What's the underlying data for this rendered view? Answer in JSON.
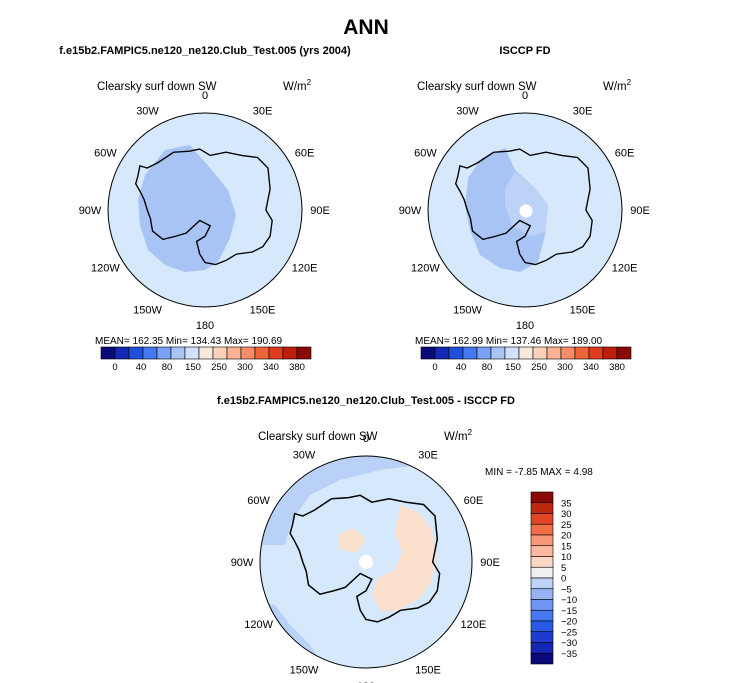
{
  "figure_title": "ANN",
  "bottom_title": "f.e15b2.FAMPIC5.ne120_ne120.Club_Test.005 - ISCCP FD",
  "colors": {
    "ocean_base": "#d6e8fb",
    "shade_low": "#a8c4f4",
    "shade_mid": "#bcd3f7",
    "diff_neg": "#b9d1f6",
    "diff_pos": "#fbe1cd",
    "coast": "#000000"
  },
  "panels": [
    {
      "id": "model",
      "title": "f.e15b2.FAMPIC5.ne120_ne120.Club_Test.005 (yrs 2004)",
      "variable": "Clearsky surf down SW",
      "units": "W/m",
      "units_sup": "2",
      "stats": "MEAN= 162.35   Min= 134.43   Max= 190.69"
    },
    {
      "id": "obs",
      "title": "ISCCP FD",
      "variable": "Clearsky surf down SW",
      "units": "W/m",
      "units_sup": "2",
      "stats": "MEAN= 162.99   Min= 137.46   Max= 189.00"
    },
    {
      "id": "diff",
      "title": "",
      "variable": "Clearsky surf down SW",
      "units": "W/m",
      "units_sup": "2",
      "stats": "MIN =   -7.85  MAX =    4.98"
    }
  ],
  "lon_labels": [
    "0",
    "30E",
    "60E",
    "90E",
    "120E",
    "150E",
    "180",
    "150W",
    "120W",
    "90W",
    "60W",
    "30W"
  ],
  "colorbar_main": {
    "colors": [
      "#0a0a78",
      "#1428b4",
      "#1e50dc",
      "#4678f0",
      "#7aa0f5",
      "#aac4f8",
      "#d2e1fb",
      "#f5eae0",
      "#fbd2b9",
      "#fab494",
      "#f78c6a",
      "#f0643c",
      "#e03c1e",
      "#be1e0a",
      "#8c0a05"
    ],
    "tick_labels": [
      "0",
      "40",
      "80",
      "150",
      "250",
      "300",
      "340",
      "380"
    ]
  },
  "colorbar_diff": {
    "colors": [
      "#0a0a78",
      "#1428b4",
      "#1e3cd2",
      "#285ae6",
      "#4678f0",
      "#6e96f2",
      "#96b4f5",
      "#bed2f8",
      "#f0f0f0",
      "#fcd6c2",
      "#fab89e",
      "#f8987a",
      "#f06e48",
      "#e04624",
      "#be2810",
      "#8c0a05"
    ],
    "tick_labels": [
      "35",
      "30",
      "25",
      "20",
      "15",
      "10",
      "5",
      "0",
      "−5",
      "−10",
      "−15",
      "−20",
      "−25",
      "−30",
      "−35"
    ]
  }
}
